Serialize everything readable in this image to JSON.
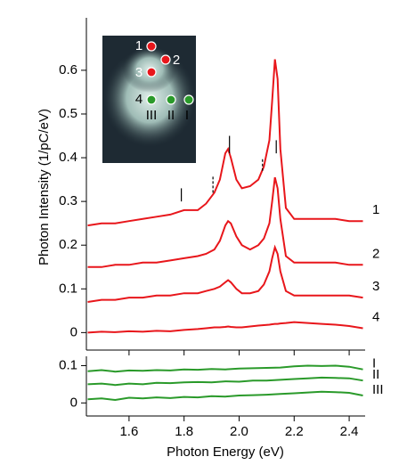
{
  "chart_data": [
    {
      "type": "line",
      "y_label": "Photon Intensity (1/pC/eV)",
      "xlim": [
        1.445,
        2.458
      ],
      "ylim": [
        -0.04,
        0.72
      ],
      "yticks": [
        0,
        0.1,
        0.2,
        0.3,
        0.4,
        0.5,
        0.6
      ],
      "x": [
        1.45,
        1.5,
        1.55,
        1.6,
        1.65,
        1.7,
        1.75,
        1.8,
        1.85,
        1.88,
        1.91,
        1.93,
        1.95,
        1.96,
        1.97,
        1.99,
        2.01,
        2.04,
        2.07,
        2.09,
        2.11,
        2.12,
        2.13,
        2.14,
        2.15,
        2.17,
        2.2,
        2.25,
        2.3,
        2.35,
        2.4,
        2.45
      ],
      "series": [
        {
          "name": "1",
          "color": "#e8161b",
          "values": [
            0.245,
            0.25,
            0.25,
            0.255,
            0.26,
            0.265,
            0.27,
            0.28,
            0.28,
            0.295,
            0.32,
            0.35,
            0.41,
            0.42,
            0.4,
            0.35,
            0.33,
            0.335,
            0.35,
            0.38,
            0.44,
            0.53,
            0.625,
            0.58,
            0.42,
            0.285,
            0.26,
            0.26,
            0.26,
            0.26,
            0.255,
            0.255
          ]
        },
        {
          "name": "2",
          "color": "#e8161b",
          "values": [
            0.15,
            0.15,
            0.155,
            0.155,
            0.16,
            0.16,
            0.165,
            0.17,
            0.175,
            0.18,
            0.19,
            0.21,
            0.245,
            0.255,
            0.25,
            0.22,
            0.2,
            0.19,
            0.2,
            0.215,
            0.25,
            0.3,
            0.355,
            0.33,
            0.26,
            0.175,
            0.16,
            0.16,
            0.16,
            0.16,
            0.155,
            0.155
          ]
        },
        {
          "name": "3",
          "color": "#e8161b",
          "values": [
            0.07,
            0.075,
            0.075,
            0.08,
            0.08,
            0.085,
            0.085,
            0.09,
            0.09,
            0.095,
            0.1,
            0.105,
            0.115,
            0.12,
            0.115,
            0.1,
            0.09,
            0.09,
            0.095,
            0.11,
            0.14,
            0.17,
            0.195,
            0.18,
            0.14,
            0.095,
            0.085,
            0.085,
            0.085,
            0.085,
            0.085,
            0.08
          ]
        },
        {
          "name": "4",
          "color": "#e8161b",
          "values": [
            0.0,
            0.002,
            0.001,
            0.003,
            0.002,
            0.004,
            0.003,
            0.006,
            0.008,
            0.01,
            0.012,
            0.012,
            0.013,
            0.014,
            0.013,
            0.012,
            0.012,
            0.014,
            0.016,
            0.017,
            0.018,
            0.019,
            0.02,
            0.02,
            0.021,
            0.022,
            0.024,
            0.022,
            0.02,
            0.018,
            0.015,
            0.01
          ]
        }
      ],
      "markers": [
        {
          "x": 1.79,
          "y": [
            0.3,
            0.33
          ],
          "dashed": false
        },
        {
          "x": 1.905,
          "y": [
            0.32,
            0.36
          ],
          "dashed": true
        },
        {
          "x": 1.965,
          "y": [
            0.41,
            0.45
          ],
          "dashed": false
        },
        {
          "x": 2.085,
          "y": [
            0.37,
            0.4
          ],
          "dashed": true
        },
        {
          "x": 2.135,
          "y": [
            0.41,
            0.44
          ],
          "dashed": false
        }
      ],
      "inset_labels": [
        "1",
        "2",
        "3",
        "4",
        "III",
        "II",
        "I"
      ]
    },
    {
      "type": "line",
      "x_label": "Photon Energy (eV)",
      "xlim": [
        1.445,
        2.458
      ],
      "ylim": [
        -0.035,
        0.125
      ],
      "xticks": [
        1.6,
        1.8,
        {
          "value": 2,
          "label": "2.0"
        },
        2.2,
        2.4
      ],
      "yticks": [
        0,
        0.1
      ],
      "x": [
        1.45,
        1.5,
        1.55,
        1.6,
        1.65,
        1.7,
        1.75,
        1.8,
        1.85,
        1.9,
        1.95,
        2.0,
        2.05,
        2.1,
        2.15,
        2.2,
        2.25,
        2.3,
        2.35,
        2.4,
        2.45
      ],
      "series": [
        {
          "name": "I",
          "color": "#2a9a2a",
          "values": [
            0.085,
            0.088,
            0.084,
            0.087,
            0.086,
            0.088,
            0.087,
            0.09,
            0.089,
            0.091,
            0.09,
            0.092,
            0.093,
            0.094,
            0.095,
            0.098,
            0.1,
            0.099,
            0.1,
            0.097,
            0.09
          ]
        },
        {
          "name": "II",
          "color": "#2a9a2a",
          "values": [
            0.05,
            0.052,
            0.048,
            0.052,
            0.05,
            0.054,
            0.053,
            0.055,
            0.056,
            0.055,
            0.058,
            0.057,
            0.06,
            0.06,
            0.062,
            0.064,
            0.066,
            0.068,
            0.067,
            0.066,
            0.06
          ]
        },
        {
          "name": "III",
          "color": "#2a9a2a",
          "values": [
            0.01,
            0.012,
            0.008,
            0.014,
            0.012,
            0.015,
            0.013,
            0.016,
            0.015,
            0.018,
            0.017,
            0.02,
            0.021,
            0.022,
            0.024,
            0.026,
            0.028,
            0.03,
            0.029,
            0.027,
            0.02
          ]
        }
      ]
    }
  ]
}
